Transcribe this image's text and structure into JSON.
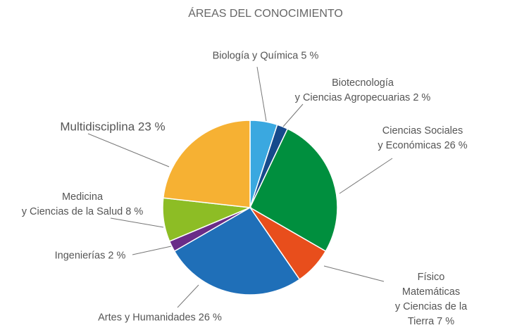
{
  "chart_data": {
    "type": "pie",
    "title": "ÁREAS DEL CONOCIMIENTO",
    "categories": [
      "Biología y Química",
      "Biotecnología\ny Ciencias Agropecuarias",
      "Ciencias Sociales\ny Económicas",
      "Físico Matemáticas\ny Ciencias de la Tierra",
      "Artes y Humanidades",
      "Ingenierías",
      "Medicina\ny Ciencias de la Salud",
      "Multidisciplina"
    ],
    "values": [
      5,
      2,
      26,
      7,
      26,
      2,
      8,
      23
    ],
    "value_labels": [
      "5 %",
      "2 %",
      "26 %",
      "7 %",
      "26 %",
      "2 %",
      "8 %",
      "23 %"
    ],
    "colors": [
      "#3aa8e0",
      "#164a8c",
      "#008f3e",
      "#e84e1c",
      "#1f6fb8",
      "#6a2c88",
      "#8dbd25",
      "#f6b133"
    ]
  }
}
